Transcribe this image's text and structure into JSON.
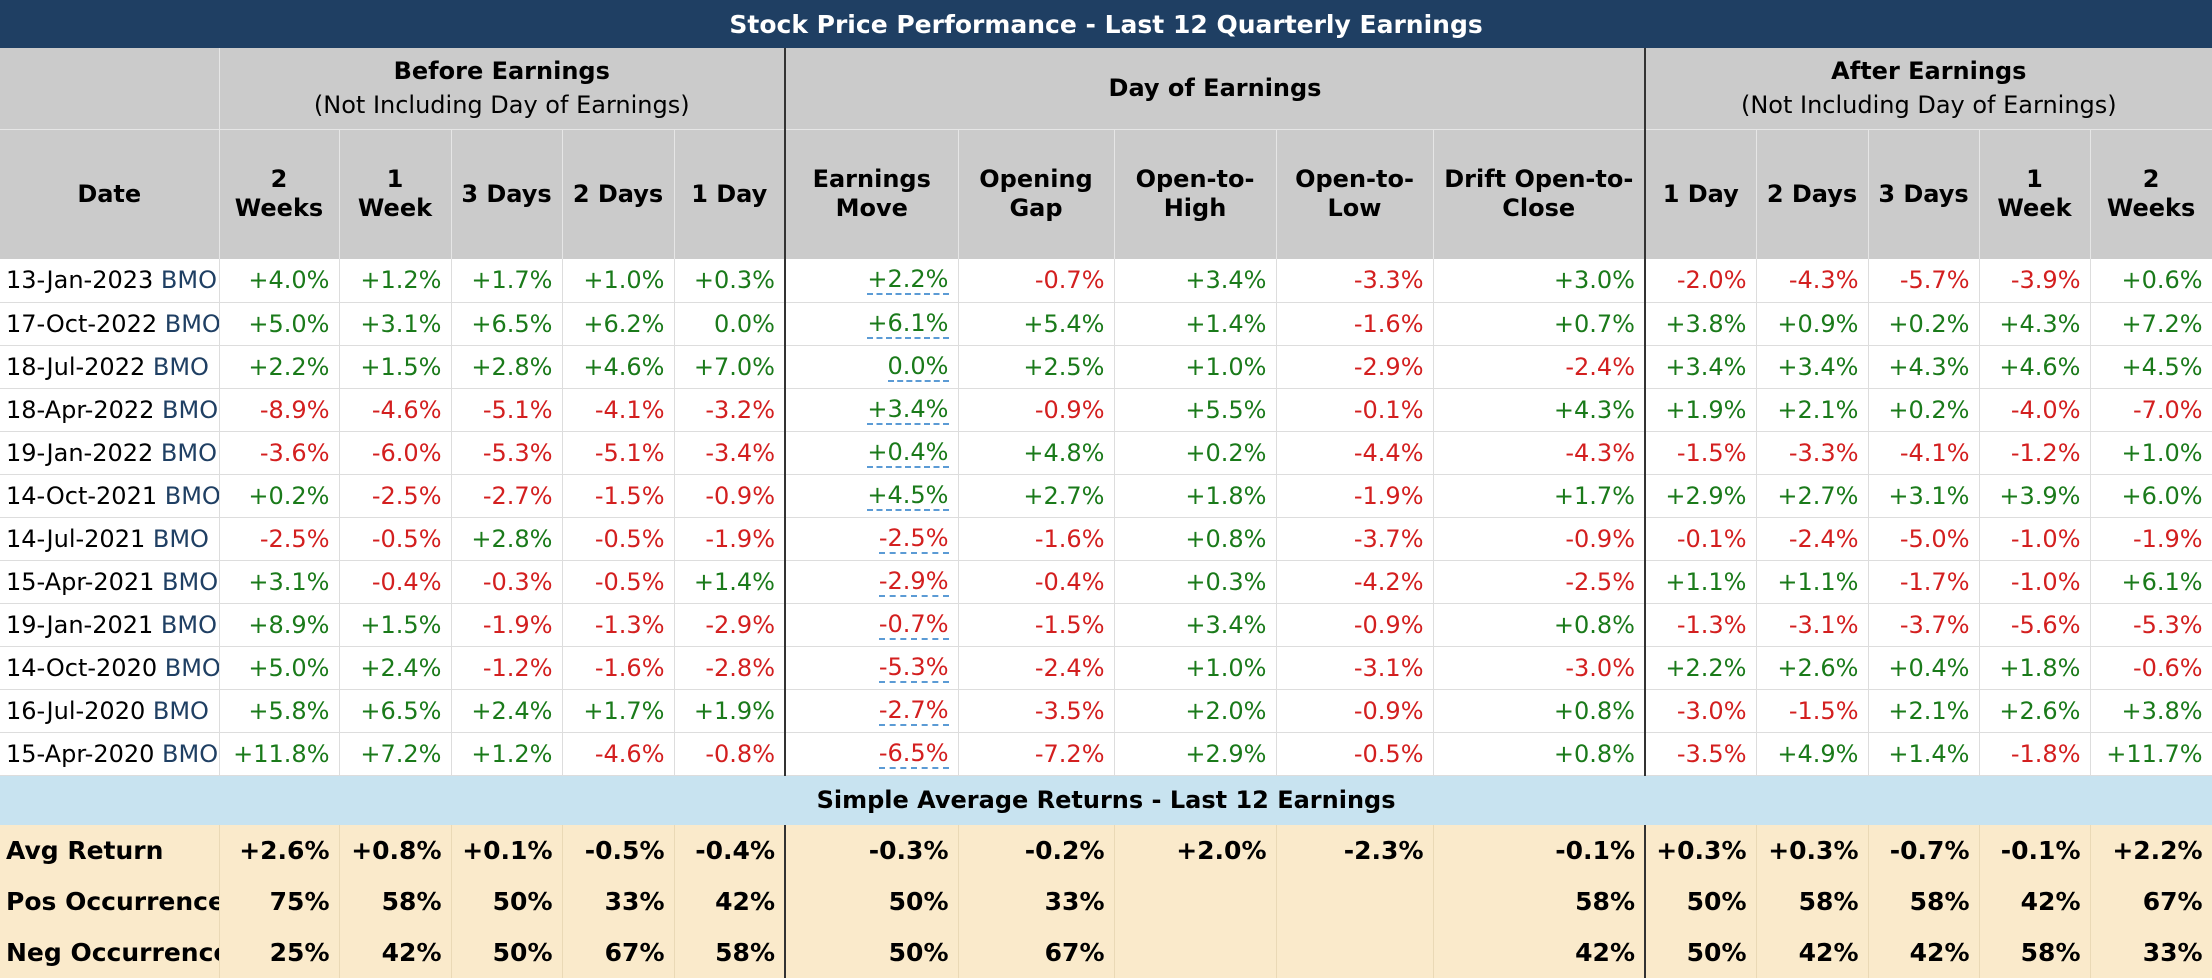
{
  "title": "Stock Price Performance - Last 12 Quarterly Earnings",
  "groups": {
    "before": {
      "title": "Before Earnings",
      "subtitle": "(Not Including Day of Earnings)"
    },
    "day": {
      "title": "Day of Earnings"
    },
    "after": {
      "title": "After Earnings",
      "subtitle": "(Not Including Day of Earnings)"
    }
  },
  "columns": [
    "Date",
    "2 Weeks",
    "1 Week",
    "3 Days",
    "2 Days",
    "1 Day",
    "Earnings Move",
    "Opening Gap",
    "Open-to-High",
    "Open-to-Low",
    "Drift Open-to-Close",
    "1 Day",
    "2 Days",
    "3 Days",
    "1 Week",
    "2 Weeks"
  ],
  "ticker": "BMO",
  "rows": [
    {
      "date": "13-Jan-2023",
      "v": [
        "+4.0%",
        "+1.2%",
        "+1.7%",
        "+1.0%",
        "+0.3%",
        "+2.2%",
        "-0.7%",
        "+3.4%",
        "-3.3%",
        "+3.0%",
        "-2.0%",
        "-4.3%",
        "-5.7%",
        "-3.9%",
        "+0.6%"
      ]
    },
    {
      "date": "17-Oct-2022",
      "v": [
        "+5.0%",
        "+3.1%",
        "+6.5%",
        "+6.2%",
        "0.0%",
        "+6.1%",
        "+5.4%",
        "+1.4%",
        "-1.6%",
        "+0.7%",
        "+3.8%",
        "+0.9%",
        "+0.2%",
        "+4.3%",
        "+7.2%"
      ]
    },
    {
      "date": "18-Jul-2022",
      "v": [
        "+2.2%",
        "+1.5%",
        "+2.8%",
        "+4.6%",
        "+7.0%",
        "0.0%",
        "+2.5%",
        "+1.0%",
        "-2.9%",
        "-2.4%",
        "+3.4%",
        "+3.4%",
        "+4.3%",
        "+4.6%",
        "+4.5%"
      ]
    },
    {
      "date": "18-Apr-2022",
      "v": [
        "-8.9%",
        "-4.6%",
        "-5.1%",
        "-4.1%",
        "-3.2%",
        "+3.4%",
        "-0.9%",
        "+5.5%",
        "-0.1%",
        "+4.3%",
        "+1.9%",
        "+2.1%",
        "+0.2%",
        "-4.0%",
        "-7.0%"
      ]
    },
    {
      "date": "19-Jan-2022",
      "v": [
        "-3.6%",
        "-6.0%",
        "-5.3%",
        "-5.1%",
        "-3.4%",
        "+0.4%",
        "+4.8%",
        "+0.2%",
        "-4.4%",
        "-4.3%",
        "-1.5%",
        "-3.3%",
        "-4.1%",
        "-1.2%",
        "+1.0%"
      ]
    },
    {
      "date": "14-Oct-2021",
      "v": [
        "+0.2%",
        "-2.5%",
        "-2.7%",
        "-1.5%",
        "-0.9%",
        "+4.5%",
        "+2.7%",
        "+1.8%",
        "-1.9%",
        "+1.7%",
        "+2.9%",
        "+2.7%",
        "+3.1%",
        "+3.9%",
        "+6.0%"
      ]
    },
    {
      "date": "14-Jul-2021",
      "v": [
        "-2.5%",
        "-0.5%",
        "+2.8%",
        "-0.5%",
        "-1.9%",
        "-2.5%",
        "-1.6%",
        "+0.8%",
        "-3.7%",
        "-0.9%",
        "-0.1%",
        "-2.4%",
        "-5.0%",
        "-1.0%",
        "-1.9%"
      ]
    },
    {
      "date": "15-Apr-2021",
      "v": [
        "+3.1%",
        "-0.4%",
        "-0.3%",
        "-0.5%",
        "+1.4%",
        "-2.9%",
        "-0.4%",
        "+0.3%",
        "-4.2%",
        "-2.5%",
        "+1.1%",
        "+1.1%",
        "-1.7%",
        "-1.0%",
        "+6.1%"
      ]
    },
    {
      "date": "19-Jan-2021",
      "v": [
        "+8.9%",
        "+1.5%",
        "-1.9%",
        "-1.3%",
        "-2.9%",
        "-0.7%",
        "-1.5%",
        "+3.4%",
        "-0.9%",
        "+0.8%",
        "-1.3%",
        "-3.1%",
        "-3.7%",
        "-5.6%",
        "-5.3%"
      ]
    },
    {
      "date": "14-Oct-2020",
      "v": [
        "+5.0%",
        "+2.4%",
        "-1.2%",
        "-1.6%",
        "-2.8%",
        "-5.3%",
        "-2.4%",
        "+1.0%",
        "-3.1%",
        "-3.0%",
        "+2.2%",
        "+2.6%",
        "+0.4%",
        "+1.8%",
        "-0.6%"
      ]
    },
    {
      "date": "16-Jul-2020",
      "v": [
        "+5.8%",
        "+6.5%",
        "+2.4%",
        "+1.7%",
        "+1.9%",
        "-2.7%",
        "-3.5%",
        "+2.0%",
        "-0.9%",
        "+0.8%",
        "-3.0%",
        "-1.5%",
        "+2.1%",
        "+2.6%",
        "+3.8%"
      ]
    },
    {
      "date": "15-Apr-2020",
      "v": [
        "+11.8%",
        "+7.2%",
        "+1.2%",
        "-4.6%",
        "-0.8%",
        "-6.5%",
        "-7.2%",
        "+2.9%",
        "-0.5%",
        "+0.8%",
        "-3.5%",
        "+4.9%",
        "+1.4%",
        "-1.8%",
        "+11.7%"
      ]
    }
  ],
  "summary": {
    "title": "Simple Average Returns - Last 12 Earnings",
    "rows": [
      {
        "label": "Avg Return",
        "colored": true,
        "v": [
          "+2.6%",
          "+0.8%",
          "+0.1%",
          "-0.5%",
          "-0.4%",
          "-0.3%",
          "-0.2%",
          "+2.0%",
          "-2.3%",
          "-0.1%",
          "+0.3%",
          "+0.3%",
          "-0.7%",
          "-0.1%",
          "+2.2%"
        ]
      },
      {
        "label": "Pos Occurrences",
        "colored": false,
        "v": [
          "75%",
          "58%",
          "50%",
          "33%",
          "42%",
          "50%",
          "33%",
          "",
          "",
          "58%",
          "50%",
          "58%",
          "58%",
          "42%",
          "67%"
        ]
      },
      {
        "label": "Neg Occurrences",
        "colored": false,
        "v": [
          "25%",
          "42%",
          "50%",
          "67%",
          "58%",
          "50%",
          "67%",
          "",
          "",
          "42%",
          "50%",
          "42%",
          "42%",
          "58%",
          "33%"
        ]
      }
    ]
  },
  "colors": {
    "title_bg": "#1f3f63",
    "header_bg": "#cbcbcb",
    "positive": "#1a7a1a",
    "negative": "#d31f1f",
    "summary_title_bg": "#c8e3f0",
    "summary_bg": "#faeacb",
    "ticker": "#1f3f63"
  }
}
